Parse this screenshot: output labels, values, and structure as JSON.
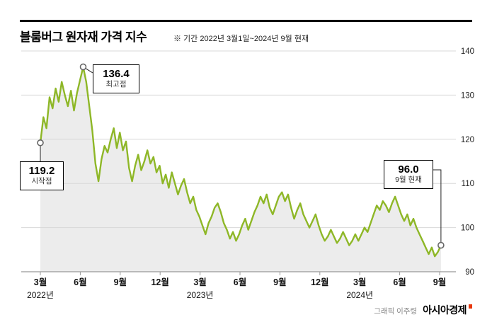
{
  "header": {
    "title": "블룸버그 원자재 가격 지수",
    "note": "※ 기간 2022년 3월1일~2024년 9월 현재"
  },
  "chart_data": {
    "type": "area",
    "title": "블룸버그 원자재 가격 지수",
    "series_name": "블룸버그 원자재 가격 지수",
    "ylim": [
      90,
      140
    ],
    "y_ticks": [
      140,
      130,
      120,
      110,
      100,
      90
    ],
    "x_tick_labels": [
      "3월",
      "6월",
      "9월",
      "12월",
      "3월",
      "6월",
      "9월",
      "12월",
      "3월",
      "6월",
      "9월"
    ],
    "x_tick_months": [
      0,
      3,
      6,
      9,
      12,
      15,
      18,
      21,
      24,
      27,
      30
    ],
    "year_labels": [
      {
        "label": "2022년",
        "month": 0
      },
      {
        "label": "2023년",
        "month": 12
      },
      {
        "label": "2024년",
        "month": 24
      }
    ],
    "total_months": 30.1,
    "grid": true,
    "legend": "none",
    "line_color": "#8eb727",
    "area_color": "#ececec",
    "values": [
      119.2,
      125.0,
      122.5,
      129.5,
      127.0,
      131.5,
      128.5,
      133.0,
      130.0,
      127.5,
      131.0,
      126.5,
      130.5,
      133.5,
      136.4,
      133.0,
      127.5,
      122.0,
      114.5,
      110.5,
      115.5,
      118.5,
      117.0,
      120.0,
      122.5,
      118.0,
      121.5,
      117.5,
      119.5,
      113.5,
      110.5,
      114.0,
      116.5,
      113.0,
      115.0,
      117.5,
      114.5,
      116.0,
      112.5,
      114.0,
      110.0,
      112.0,
      109.0,
      112.5,
      110.0,
      107.5,
      109.5,
      111.0,
      108.0,
      105.5,
      107.0,
      104.0,
      102.5,
      100.5,
      98.5,
      101.0,
      102.5,
      104.5,
      105.5,
      103.5,
      101.0,
      99.5,
      97.5,
      99.0,
      97.0,
      98.5,
      100.5,
      102.0,
      99.5,
      101.5,
      103.5,
      105.0,
      107.0,
      105.5,
      107.5,
      104.5,
      103.0,
      105.0,
      107.0,
      108.0,
      106.0,
      107.5,
      104.5,
      102.0,
      104.0,
      105.5,
      103.0,
      101.5,
      100.0,
      101.5,
      103.0,
      100.5,
      98.5,
      97.0,
      98.0,
      99.5,
      98.0,
      96.5,
      97.5,
      99.0,
      97.5,
      96.0,
      97.0,
      98.5,
      97.0,
      98.5,
      100.0,
      99.0,
      101.0,
      103.0,
      105.0,
      104.0,
      106.0,
      105.0,
      103.5,
      105.5,
      107.0,
      105.0,
      103.0,
      101.5,
      103.0,
      100.5,
      102.0,
      100.0,
      98.5,
      97.0,
      95.5,
      94.0,
      95.5,
      93.5,
      94.5,
      96.0
    ],
    "annotations": {
      "start": {
        "value": "119.2",
        "label": "시작점",
        "index": 0
      },
      "peak": {
        "value": "136.4",
        "label": "최고점",
        "index": 14
      },
      "end": {
        "value": "96.0",
        "label": "9월 현재",
        "index": 131
      }
    }
  },
  "footer": {
    "credit": "그래픽 이주령",
    "brand": "아시아경제"
  }
}
